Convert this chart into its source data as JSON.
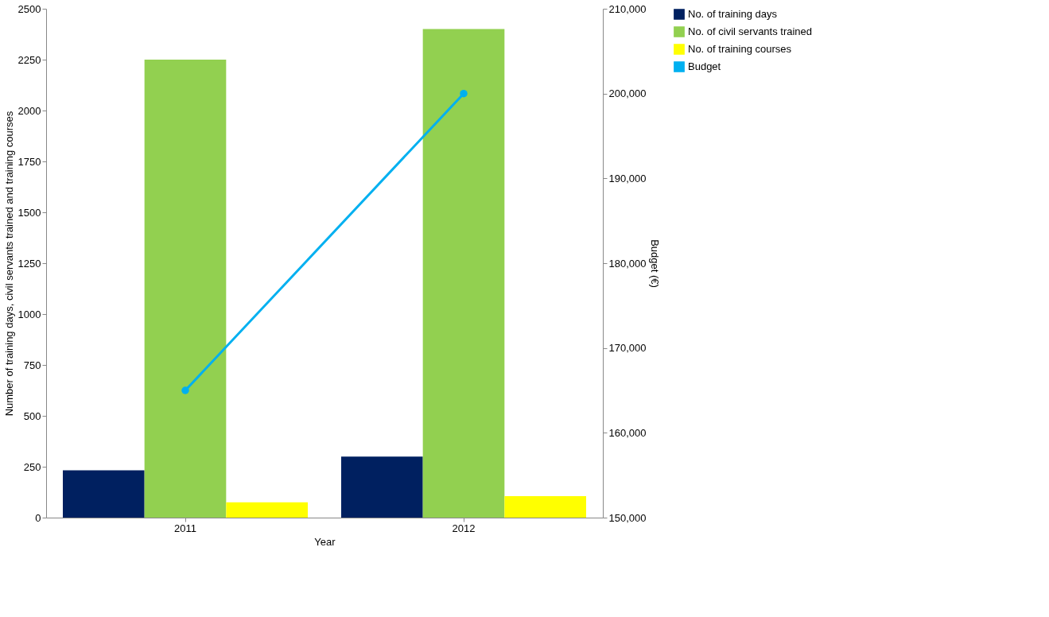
{
  "chart_data": {
    "type": "bar",
    "xlabel": "Year",
    "ylabel": "Number of training days, civil servants trained and training courses",
    "y2label": "Budget (€)",
    "categories": [
      "2011",
      "2012"
    ],
    "series": [
      {
        "name": "No. of training days",
        "color": "#002060",
        "values": [
          232,
          300
        ]
      },
      {
        "name": "No. of civil servants trained",
        "color": "#92d050",
        "values": [
          2250,
          2400
        ]
      },
      {
        "name": "No. of training courses",
        "color": "#ffff00",
        "values": [
          75,
          105
        ]
      },
      {
        "name": "Budget",
        "color": "#00b0f0",
        "values": [
          165000,
          200000
        ],
        "type": "line",
        "axis": "y2"
      }
    ],
    "ylim": [
      0,
      2500
    ],
    "yticks": [
      0,
      250,
      500,
      750,
      1000,
      1250,
      1500,
      1750,
      2000,
      2250,
      2500
    ],
    "y2lim": [
      150000,
      210000
    ],
    "y2ticks": [
      {
        "value": 150000,
        "label": "150,000"
      },
      {
        "value": 160000,
        "label": "160,000"
      },
      {
        "value": 170000,
        "label": "170,000"
      },
      {
        "value": 180000,
        "label": "180,000"
      },
      {
        "value": 190000,
        "label": "190,000"
      },
      {
        "value": 200000,
        "label": "200,000"
      },
      {
        "value": 210000,
        "label": "210,000"
      }
    ],
    "grid": false,
    "legend": "right",
    "marker": "circle",
    "line_style": "solid"
  }
}
